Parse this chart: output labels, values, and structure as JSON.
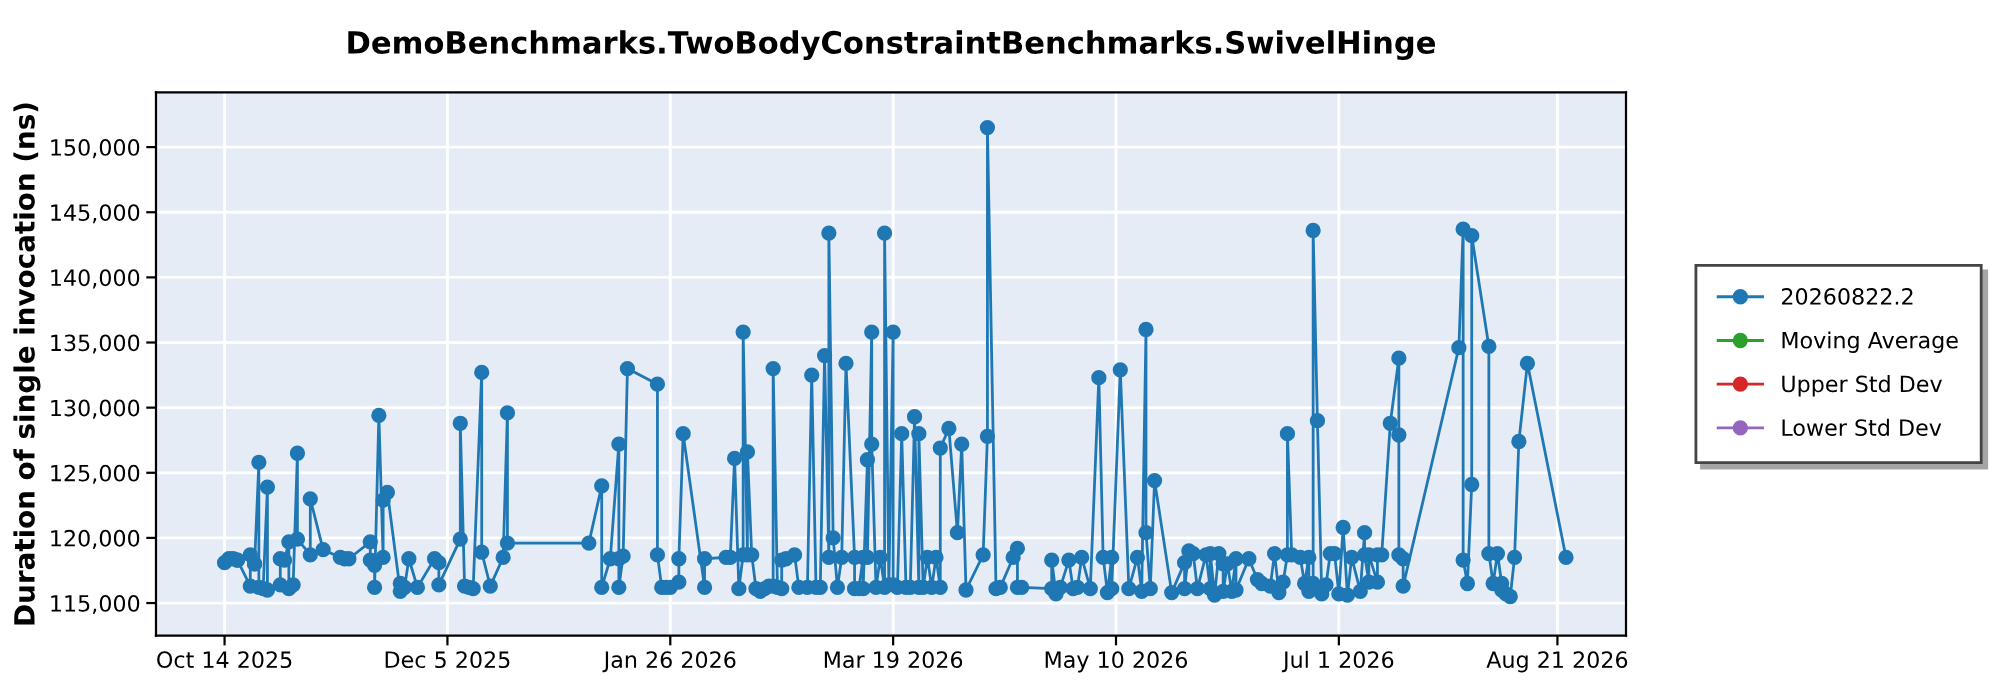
{
  "chart_data": {
    "type": "line",
    "title": "DemoBenchmarks.TwoBodyConstraintBenchmarks.SwivelHinge",
    "ylabel": "Duration of single invocation (ns)",
    "xlim": [
      "2025-09-28",
      "2026-09-06"
    ],
    "xticks": [
      {
        "value": "2025-10-14",
        "label": "Oct 14 2025"
      },
      {
        "value": "2025-12-05",
        "label": "Dec 5 2025"
      },
      {
        "value": "2026-01-26",
        "label": "Jan 26 2026"
      },
      {
        "value": "2026-03-19",
        "label": "Mar 19 2026"
      },
      {
        "value": "2026-05-10",
        "label": "May 10 2026"
      },
      {
        "value": "2026-07-01",
        "label": "Jul 1 2026"
      },
      {
        "value": "2026-08-21",
        "label": "Aug 21 2026"
      }
    ],
    "ylim": [
      112500,
      154200
    ],
    "yticks": [
      {
        "value": 115000,
        "label": "115,000"
      },
      {
        "value": 120000,
        "label": "120,000"
      },
      {
        "value": 125000,
        "label": "125,000"
      },
      {
        "value": 130000,
        "label": "130,000"
      },
      {
        "value": 135000,
        "label": "135,000"
      },
      {
        "value": 140000,
        "label": "140,000"
      },
      {
        "value": 145000,
        "label": "145,000"
      },
      {
        "value": 150000,
        "label": "150,000"
      }
    ],
    "grid": true,
    "legend": "right",
    "marker": "circle",
    "line_style": "solid",
    "series": [
      {
        "name": "20260822.2",
        "color": "#1f77b4",
        "x": [
          "2025-10-14",
          "2025-10-15",
          "2025-10-16",
          "2025-10-17",
          "2025-10-17",
          "2025-10-20",
          "2025-10-20",
          "2025-10-21",
          "2025-10-21",
          "2025-10-22",
          "2025-10-22",
          "2025-10-23",
          "2025-10-24",
          "2025-10-24",
          "2025-10-27",
          "2025-10-27",
          "2025-10-28",
          "2025-10-29",
          "2025-10-29",
          "2025-10-30",
          "2025-10-31",
          "2025-10-31",
          "2025-11-03",
          "2025-11-03",
          "2025-11-06",
          "2025-11-10",
          "2025-11-11",
          "2025-11-12",
          "2025-11-17",
          "2025-11-17",
          "2025-11-18",
          "2025-11-18",
          "2025-11-19",
          "2025-11-20",
          "2025-11-20",
          "2025-11-21",
          "2025-11-24",
          "2025-11-24",
          "2025-11-25",
          "2025-11-26",
          "2025-11-28",
          "2025-12-02",
          "2025-12-03",
          "2025-12-03",
          "2025-12-08",
          "2025-12-08",
          "2025-12-09",
          "2025-12-10",
          "2025-12-11",
          "2025-12-13",
          "2025-12-13",
          "2025-12-15",
          "2025-12-18",
          "2025-12-19",
          "2025-12-19",
          "2026-01-07",
          "2026-01-10",
          "2026-01-10",
          "2026-01-12",
          "2026-01-14",
          "2026-01-14",
          "2026-01-14",
          "2026-01-15",
          "2026-01-16",
          "2026-01-23",
          "2026-01-23",
          "2026-01-24",
          "2026-01-25",
          "2026-01-26",
          "2026-01-28",
          "2026-01-28",
          "2026-01-29",
          "2026-02-03",
          "2026-02-03",
          "2026-02-08",
          "2026-02-09",
          "2026-02-10",
          "2026-02-11",
          "2026-02-12",
          "2026-02-12",
          "2026-02-13",
          "2026-02-13",
          "2026-02-14",
          "2026-02-15",
          "2026-02-16",
          "2026-02-17",
          "2026-02-18",
          "2026-02-19",
          "2026-02-19",
          "2026-02-20",
          "2026-02-21",
          "2026-02-21",
          "2026-02-22",
          "2026-02-24",
          "2026-02-25",
          "2026-02-27",
          "2026-02-28",
          "2026-03-01",
          "2026-03-02",
          "2026-03-03",
          "2026-03-04",
          "2026-03-04",
          "2026-03-05",
          "2026-03-06",
          "2026-03-07",
          "2026-03-08",
          "2026-03-10",
          "2026-03-10",
          "2026-03-11",
          "2026-03-12",
          "2026-03-12",
          "2026-03-13",
          "2026-03-13",
          "2026-03-14",
          "2026-03-14",
          "2026-03-15",
          "2026-03-16",
          "2026-03-17",
          "2026-03-17",
          "2026-03-18",
          "2026-03-19",
          "2026-03-19",
          "2026-03-20",
          "2026-03-21",
          "2026-03-22",
          "2026-03-23",
          "2026-03-24",
          "2026-03-25",
          "2026-03-25",
          "2026-03-26",
          "2026-03-27",
          "2026-03-28",
          "2026-03-29",
          "2026-03-30",
          "2026-03-30",
          "2026-04-01",
          "2026-04-03",
          "2026-04-04",
          "2026-04-05",
          "2026-04-09",
          "2026-04-10",
          "2026-04-10",
          "2026-04-12",
          "2026-04-13",
          "2026-04-16",
          "2026-04-17",
          "2026-04-17",
          "2026-04-18",
          "2026-04-25",
          "2026-04-25",
          "2026-04-26",
          "2026-04-27",
          "2026-04-29",
          "2026-04-30",
          "2026-05-01",
          "2026-05-02",
          "2026-05-04",
          "2026-05-06",
          "2026-05-07",
          "2026-05-08",
          "2026-05-09",
          "2026-05-09",
          "2026-05-11",
          "2026-05-13",
          "2026-05-15",
          "2026-05-16",
          "2026-05-17",
          "2026-05-17",
          "2026-05-18",
          "2026-05-19",
          "2026-05-23",
          "2026-05-26",
          "2026-05-26",
          "2026-05-27",
          "2026-05-28",
          "2026-05-29",
          "2026-05-31",
          "2026-06-01",
          "2026-06-01",
          "2026-06-02",
          "2026-06-03",
          "2026-06-04",
          "2026-06-04",
          "2026-06-05",
          "2026-06-06",
          "2026-06-07",
          "2026-06-07",
          "2026-06-10",
          "2026-06-12",
          "2026-06-13",
          "2026-06-15",
          "2026-06-16",
          "2026-06-17",
          "2026-06-18",
          "2026-06-19",
          "2026-06-19",
          "2026-06-20",
          "2026-06-22",
          "2026-06-23",
          "2026-06-24",
          "2026-06-24",
          "2026-06-25",
          "2026-06-25",
          "2026-06-26",
          "2026-06-27",
          "2026-06-28",
          "2026-06-29",
          "2026-06-30",
          "2026-07-01",
          "2026-07-02",
          "2026-07-03",
          "2026-07-04",
          "2026-07-06",
          "2026-07-07",
          "2026-07-07",
          "2026-07-08",
          "2026-07-08",
          "2026-07-10",
          "2026-07-10",
          "2026-07-11",
          "2026-07-13",
          "2026-07-15",
          "2026-07-15",
          "2026-07-15",
          "2026-07-16",
          "2026-07-16",
          "2026-07-29",
          "2026-07-30",
          "2026-07-30",
          "2026-07-31",
          "2026-08-01",
          "2026-08-01",
          "2026-08-05",
          "2026-08-05",
          "2026-08-06",
          "2026-08-07",
          "2026-08-08",
          "2026-08-08",
          "2026-08-09",
          "2026-08-10",
          "2026-08-11",
          "2026-08-12",
          "2026-08-14",
          "2026-08-23"
        ],
        "values": [
          118100,
          118400,
          118400,
          118300,
          118300,
          116300,
          118700,
          118000,
          118000,
          125800,
          116200,
          116100,
          123900,
          116000,
          116400,
          118400,
          118300,
          119700,
          116100,
          116400,
          126500,
          119900,
          118700,
          123000,
          119100,
          118500,
          118400,
          118400,
          119700,
          118300,
          117900,
          116200,
          129400,
          118500,
          122900,
          123500,
          115900,
          116500,
          116200,
          118400,
          116200,
          118400,
          118100,
          116400,
          119900,
          128800,
          116300,
          116200,
          116100,
          132700,
          118900,
          116300,
          118500,
          129600,
          119600,
          119600,
          124000,
          116200,
          118400,
          127200,
          118400,
          116200,
          118600,
          133000,
          131800,
          118700,
          116200,
          116200,
          116200,
          116600,
          118400,
          128000,
          116200,
          118400,
          118500,
          118500,
          126100,
          116100,
          118700,
          135800,
          118700,
          126600,
          118700,
          116100,
          115900,
          116100,
          116300,
          116300,
          133000,
          116200,
          116100,
          118300,
          118400,
          118700,
          116200,
          116200,
          132500,
          116200,
          116200,
          134000,
          118500,
          143400,
          120000,
          116200,
          118500,
          133400,
          118500,
          116100,
          116100,
          118500,
          116100,
          126000,
          118500,
          135800,
          127200,
          116200,
          118500,
          116200,
          143400,
          116400,
          135800,
          116400,
          116200,
          128000,
          116200,
          116200,
          129300,
          116200,
          128000,
          116200,
          118500,
          116200,
          118500,
          116200,
          126900,
          128400,
          120400,
          127200,
          116000,
          118700,
          127800,
          151500,
          116100,
          116200,
          118500,
          119200,
          116200,
          116200,
          116100,
          118300,
          115700,
          116200,
          118300,
          116100,
          116200,
          118500,
          116100,
          132300,
          118500,
          115800,
          118500,
          116100,
          132900,
          116100,
          118500,
          115900,
          136000,
          120400,
          116100,
          124400,
          115800,
          118100,
          116100,
          119000,
          118800,
          116100,
          118700,
          116100,
          118800,
          115600,
          118800,
          118000,
          115900,
          118000,
          115900,
          118400,
          116000,
          118400,
          116800,
          116500,
          116300,
          118800,
          115800,
          116600,
          118700,
          128000,
          118700,
          118500,
          116500,
          118500,
          115900,
          116500,
          143600,
          129000,
          115700,
          116400,
          118800,
          118800,
          115700,
          120800,
          115600,
          118500,
          115900,
          120400,
          118700,
          116600,
          118700,
          116600,
          118700,
          118700,
          128800,
          133800,
          127900,
          118700,
          118400,
          116300,
          134600,
          143700,
          118300,
          116500,
          124100,
          143200,
          134700,
          118800,
          116500,
          118800,
          116500,
          116000,
          115700,
          115500,
          118500,
          127400,
          133400,
          118500
        ]
      },
      {
        "name": "Moving Average",
        "color": "#2ca02c"
      },
      {
        "name": "Upper Std Dev",
        "color": "#d62728"
      },
      {
        "name": "Lower Std Dev",
        "color": "#9467bd"
      }
    ]
  }
}
